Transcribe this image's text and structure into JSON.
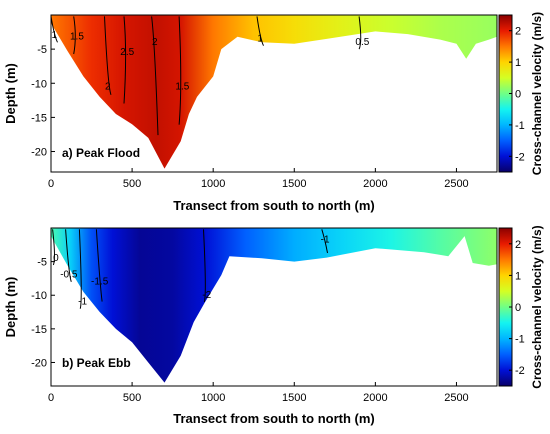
{
  "colorbar": {
    "label": "Cross-channel velocity (m/s)",
    "range": [
      -2.5,
      2.5
    ],
    "ticks": [
      2,
      1,
      0,
      -1,
      -2
    ],
    "tick_labels": [
      "2",
      "1",
      "0",
      "-1",
      "-2"
    ],
    "colormap": [
      "#08006a",
      "#0010d6",
      "#0060ff",
      "#00b6ff",
      "#14f4f0",
      "#70ff86",
      "#d4ff24",
      "#ffd400",
      "#ff7800",
      "#e81a00",
      "#8a0000"
    ]
  },
  "chart_data": [
    {
      "type": "heatmap",
      "panel_label": "a) Peak Flood",
      "xlabel": "Transect from south to north (m)",
      "ylabel": "Depth (m)",
      "xlim": [
        0,
        2750
      ],
      "ylim": [
        -23,
        0
      ],
      "x_ticks": [
        0,
        500,
        1000,
        1500,
        2000,
        2500
      ],
      "x_tick_labels": [
        "0",
        "500",
        "1000",
        "1500",
        "2000",
        "2500"
      ],
      "y_ticks": [
        -5,
        -10,
        -15,
        -20
      ],
      "y_tick_labels": [
        "-5",
        "-10",
        "-15",
        "-20"
      ],
      "bottom_profile": [
        [
          0,
          -1.2
        ],
        [
          100,
          -5.2
        ],
        [
          200,
          -9
        ],
        [
          300,
          -12
        ],
        [
          400,
          -14.5
        ],
        [
          500,
          -16
        ],
        [
          600,
          -18
        ],
        [
          700,
          -22.5
        ],
        [
          800,
          -18.5
        ],
        [
          850,
          -14.5
        ],
        [
          900,
          -12
        ],
        [
          1000,
          -9
        ],
        [
          1050,
          -5
        ],
        [
          1150,
          -3.2
        ],
        [
          1300,
          -4.0
        ],
        [
          1500,
          -4.2
        ],
        [
          1700,
          -3.5
        ],
        [
          2000,
          -2.4
        ],
        [
          2200,
          -2.8
        ],
        [
          2400,
          -3.6
        ],
        [
          2500,
          -4.2
        ],
        [
          2560,
          -6.4
        ],
        [
          2620,
          -4.2
        ],
        [
          2700,
          -3.6
        ],
        [
          2750,
          -3.2
        ]
      ],
      "velocity_field": [
        [
          0,
          1.5
        ],
        [
          250,
          1.9
        ],
        [
          450,
          2.1
        ],
        [
          650,
          2.2
        ],
        [
          800,
          2.1
        ],
        [
          1000,
          1.5
        ],
        [
          1250,
          1.1
        ],
        [
          1500,
          0.9
        ],
        [
          1800,
          0.65
        ],
        [
          2100,
          0.45
        ],
        [
          2400,
          0.3
        ],
        [
          2750,
          0.2
        ]
      ],
      "contours": [
        {
          "level": "1.5",
          "label": "1.5",
          "label_pos": [
            160,
            -3.2
          ]
        },
        {
          "level": "2",
          "label": "2",
          "label_pos": [
            350,
            -10.5
          ]
        },
        {
          "level": "2.5",
          "label": "2.5",
          "label_pos": [
            470,
            -5.5
          ]
        },
        {
          "level": "2",
          "label": "2",
          "label_pos": [
            640,
            -4
          ]
        },
        {
          "level": "1.5",
          "label": "1.5",
          "label_pos": [
            810,
            -10.5
          ]
        },
        {
          "level": "1",
          "label": "1",
          "label_pos": [
            1290,
            -3.5
          ]
        },
        {
          "level": "0.5",
          "label": "0.5",
          "label_pos": [
            1920,
            -4
          ]
        },
        {
          "level": "1",
          "label": "1",
          "label_pos": [
            20,
            -3
          ]
        }
      ]
    },
    {
      "type": "heatmap",
      "panel_label": "b) Peak Ebb",
      "xlabel": "Transect from south to north (m)",
      "ylabel": "Depth (m)",
      "xlim": [
        0,
        2750
      ],
      "ylim": [
        -23.5,
        0
      ],
      "x_ticks": [
        0,
        500,
        1000,
        1500,
        2000,
        2500
      ],
      "x_tick_labels": [
        "0",
        "500",
        "1000",
        "1500",
        "2000",
        "2500"
      ],
      "y_ticks": [
        -5,
        -10,
        -15,
        -20
      ],
      "y_tick_labels": [
        "-5",
        "-10",
        "-15",
        "-20"
      ],
      "bottom_profile": [
        [
          0,
          -1.2
        ],
        [
          100,
          -5.5
        ],
        [
          200,
          -9.5
        ],
        [
          300,
          -12.5
        ],
        [
          400,
          -15
        ],
        [
          500,
          -17
        ],
        [
          600,
          -20
        ],
        [
          700,
          -23
        ],
        [
          800,
          -19
        ],
        [
          880,
          -14
        ],
        [
          950,
          -11
        ],
        [
          1050,
          -7
        ],
        [
          1100,
          -4.2
        ],
        [
          1300,
          -4.5
        ],
        [
          1500,
          -5.0
        ],
        [
          1700,
          -4.4
        ],
        [
          2000,
          -3.0
        ],
        [
          2300,
          -3.6
        ],
        [
          2450,
          -4.2
        ],
        [
          2550,
          -1.2
        ],
        [
          2600,
          -5.2
        ],
        [
          2700,
          -5.6
        ],
        [
          2750,
          -5.4
        ]
      ],
      "velocity_field": [
        [
          0,
          -0.2
        ],
        [
          120,
          -0.8
        ],
        [
          250,
          -1.6
        ],
        [
          380,
          -2.0
        ],
        [
          550,
          -2.3
        ],
        [
          750,
          -2.25
        ],
        [
          950,
          -2.0
        ],
        [
          1200,
          -1.5
        ],
        [
          1500,
          -1.05
        ],
        [
          1800,
          -0.75
        ],
        [
          2100,
          -0.45
        ],
        [
          2400,
          -0.15
        ],
        [
          2750,
          0.15
        ]
      ],
      "contours": [
        {
          "level": "0",
          "label": "0",
          "label_pos": [
            30,
            -4.5
          ]
        },
        {
          "level": "-0.5",
          "label": "-0.5",
          "label_pos": [
            110,
            -7
          ]
        },
        {
          "level": "-1",
          "label": "-1",
          "label_pos": [
            195,
            -11
          ]
        },
        {
          "level": "-1.5",
          "label": "-1.5",
          "label_pos": [
            300,
            -8
          ]
        },
        {
          "level": "-2",
          "label": "-2",
          "label_pos": [
            960,
            -10
          ]
        },
        {
          "level": "-1",
          "label": "-1",
          "label_pos": [
            1690,
            -1.8
          ]
        }
      ]
    }
  ]
}
